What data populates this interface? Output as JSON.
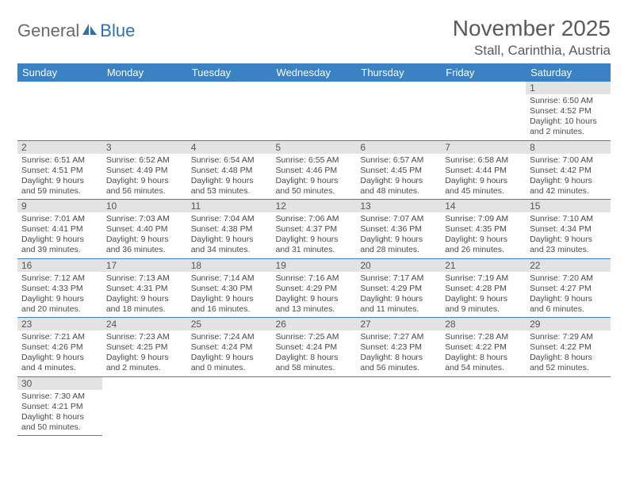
{
  "brand": {
    "part1": "General",
    "part2": "Blue"
  },
  "title": "November 2025",
  "location": "Stall, Carinthia, Austria",
  "colors": {
    "header_bg": "#3a82c4",
    "header_text": "#ffffff",
    "daynum_bg": "#e3e3e3",
    "rule": "#3a82c4",
    "text": "#4a4a4a",
    "title": "#5a5a5a"
  },
  "weekdays": [
    "Sunday",
    "Monday",
    "Tuesday",
    "Wednesday",
    "Thursday",
    "Friday",
    "Saturday"
  ],
  "weeks": [
    [
      null,
      null,
      null,
      null,
      null,
      null,
      {
        "n": "1",
        "sr": "Sunrise: 6:50 AM",
        "ss": "Sunset: 4:52 PM",
        "dl": "Daylight: 10 hours and 2 minutes."
      }
    ],
    [
      {
        "n": "2",
        "sr": "Sunrise: 6:51 AM",
        "ss": "Sunset: 4:51 PM",
        "dl": "Daylight: 9 hours and 59 minutes."
      },
      {
        "n": "3",
        "sr": "Sunrise: 6:52 AM",
        "ss": "Sunset: 4:49 PM",
        "dl": "Daylight: 9 hours and 56 minutes."
      },
      {
        "n": "4",
        "sr": "Sunrise: 6:54 AM",
        "ss": "Sunset: 4:48 PM",
        "dl": "Daylight: 9 hours and 53 minutes."
      },
      {
        "n": "5",
        "sr": "Sunrise: 6:55 AM",
        "ss": "Sunset: 4:46 PM",
        "dl": "Daylight: 9 hours and 50 minutes."
      },
      {
        "n": "6",
        "sr": "Sunrise: 6:57 AM",
        "ss": "Sunset: 4:45 PM",
        "dl": "Daylight: 9 hours and 48 minutes."
      },
      {
        "n": "7",
        "sr": "Sunrise: 6:58 AM",
        "ss": "Sunset: 4:44 PM",
        "dl": "Daylight: 9 hours and 45 minutes."
      },
      {
        "n": "8",
        "sr": "Sunrise: 7:00 AM",
        "ss": "Sunset: 4:42 PM",
        "dl": "Daylight: 9 hours and 42 minutes."
      }
    ],
    [
      {
        "n": "9",
        "sr": "Sunrise: 7:01 AM",
        "ss": "Sunset: 4:41 PM",
        "dl": "Daylight: 9 hours and 39 minutes."
      },
      {
        "n": "10",
        "sr": "Sunrise: 7:03 AM",
        "ss": "Sunset: 4:40 PM",
        "dl": "Daylight: 9 hours and 36 minutes."
      },
      {
        "n": "11",
        "sr": "Sunrise: 7:04 AM",
        "ss": "Sunset: 4:38 PM",
        "dl": "Daylight: 9 hours and 34 minutes."
      },
      {
        "n": "12",
        "sr": "Sunrise: 7:06 AM",
        "ss": "Sunset: 4:37 PM",
        "dl": "Daylight: 9 hours and 31 minutes."
      },
      {
        "n": "13",
        "sr": "Sunrise: 7:07 AM",
        "ss": "Sunset: 4:36 PM",
        "dl": "Daylight: 9 hours and 28 minutes."
      },
      {
        "n": "14",
        "sr": "Sunrise: 7:09 AM",
        "ss": "Sunset: 4:35 PM",
        "dl": "Daylight: 9 hours and 26 minutes."
      },
      {
        "n": "15",
        "sr": "Sunrise: 7:10 AM",
        "ss": "Sunset: 4:34 PM",
        "dl": "Daylight: 9 hours and 23 minutes."
      }
    ],
    [
      {
        "n": "16",
        "sr": "Sunrise: 7:12 AM",
        "ss": "Sunset: 4:33 PM",
        "dl": "Daylight: 9 hours and 20 minutes."
      },
      {
        "n": "17",
        "sr": "Sunrise: 7:13 AM",
        "ss": "Sunset: 4:31 PM",
        "dl": "Daylight: 9 hours and 18 minutes."
      },
      {
        "n": "18",
        "sr": "Sunrise: 7:14 AM",
        "ss": "Sunset: 4:30 PM",
        "dl": "Daylight: 9 hours and 16 minutes."
      },
      {
        "n": "19",
        "sr": "Sunrise: 7:16 AM",
        "ss": "Sunset: 4:29 PM",
        "dl": "Daylight: 9 hours and 13 minutes."
      },
      {
        "n": "20",
        "sr": "Sunrise: 7:17 AM",
        "ss": "Sunset: 4:29 PM",
        "dl": "Daylight: 9 hours and 11 minutes."
      },
      {
        "n": "21",
        "sr": "Sunrise: 7:19 AM",
        "ss": "Sunset: 4:28 PM",
        "dl": "Daylight: 9 hours and 9 minutes."
      },
      {
        "n": "22",
        "sr": "Sunrise: 7:20 AM",
        "ss": "Sunset: 4:27 PM",
        "dl": "Daylight: 9 hours and 6 minutes."
      }
    ],
    [
      {
        "n": "23",
        "sr": "Sunrise: 7:21 AM",
        "ss": "Sunset: 4:26 PM",
        "dl": "Daylight: 9 hours and 4 minutes."
      },
      {
        "n": "24",
        "sr": "Sunrise: 7:23 AM",
        "ss": "Sunset: 4:25 PM",
        "dl": "Daylight: 9 hours and 2 minutes."
      },
      {
        "n": "25",
        "sr": "Sunrise: 7:24 AM",
        "ss": "Sunset: 4:24 PM",
        "dl": "Daylight: 9 hours and 0 minutes."
      },
      {
        "n": "26",
        "sr": "Sunrise: 7:25 AM",
        "ss": "Sunset: 4:24 PM",
        "dl": "Daylight: 8 hours and 58 minutes."
      },
      {
        "n": "27",
        "sr": "Sunrise: 7:27 AM",
        "ss": "Sunset: 4:23 PM",
        "dl": "Daylight: 8 hours and 56 minutes."
      },
      {
        "n": "28",
        "sr": "Sunrise: 7:28 AM",
        "ss": "Sunset: 4:22 PM",
        "dl": "Daylight: 8 hours and 54 minutes."
      },
      {
        "n": "29",
        "sr": "Sunrise: 7:29 AM",
        "ss": "Sunset: 4:22 PM",
        "dl": "Daylight: 8 hours and 52 minutes."
      }
    ],
    [
      {
        "n": "30",
        "sr": "Sunrise: 7:30 AM",
        "ss": "Sunset: 4:21 PM",
        "dl": "Daylight: 8 hours and 50 minutes."
      },
      null,
      null,
      null,
      null,
      null,
      null
    ]
  ]
}
